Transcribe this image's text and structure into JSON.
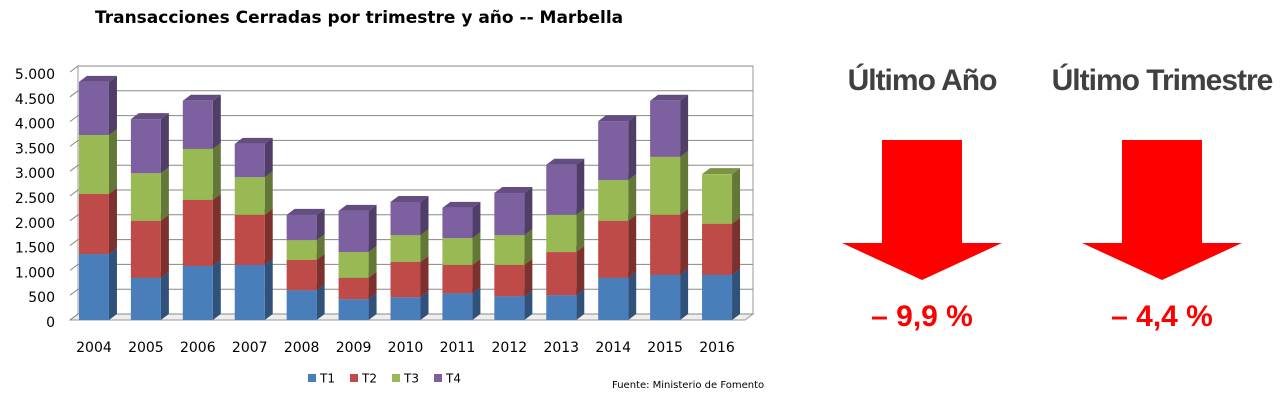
{
  "chart_data": {
    "type": "bar",
    "stacked": true,
    "title": "Transacciones Cerradas por trimestre y año -- Marbella",
    "categories": [
      "2004",
      "2005",
      "2006",
      "2007",
      "2008",
      "2009",
      "2010",
      "2011",
      "2012",
      "2013",
      "2014",
      "2015",
      "2016"
    ],
    "series": [
      {
        "name": "T1",
        "color": "#4a7ebb",
        "values": [
          1330,
          850,
          1090,
          1110,
          600,
          420,
          460,
          540,
          480,
          500,
          850,
          910,
          910
        ]
      },
      {
        "name": "T2",
        "color": "#be4b48",
        "values": [
          1210,
          1150,
          1330,
          1010,
          610,
          430,
          710,
          570,
          630,
          870,
          1150,
          1210,
          1030
        ]
      },
      {
        "name": "T3",
        "color": "#98b954",
        "values": [
          1190,
          960,
          1030,
          760,
          400,
          520,
          540,
          540,
          600,
          750,
          820,
          1170,
          1000
        ]
      },
      {
        "name": "T4",
        "color": "#7d60a0",
        "values": [
          1070,
          1090,
          970,
          670,
          510,
          830,
          670,
          610,
          850,
          1010,
          1190,
          1130,
          null
        ]
      }
    ],
    "ylim": [
      0,
      5000
    ],
    "yticks": [
      0,
      500,
      {
        "value": 1000,
        "label": "1.000"
      },
      {
        "value": 1500,
        "label": "1.500"
      },
      {
        "value": 2000,
        "label": "2.000"
      },
      {
        "value": 2500,
        "label": "2.500"
      },
      {
        "value": 3000,
        "label": "3.000"
      },
      {
        "value": 3500,
        "label": "3.500"
      },
      {
        "value": 4000,
        "label": "4.000"
      },
      {
        "value": 4500,
        "label": "4.500"
      },
      {
        "value": 5000,
        "label": "5.000"
      }
    ],
    "grid": true,
    "legend": "bottom",
    "source": "Fuente: Ministerio de Fomento"
  },
  "indicators": [
    {
      "label": "Último Año",
      "value_label": "– 9,9 %"
    },
    {
      "label": "Último Trimestre",
      "value_label": "– 4,4 %"
    }
  ]
}
